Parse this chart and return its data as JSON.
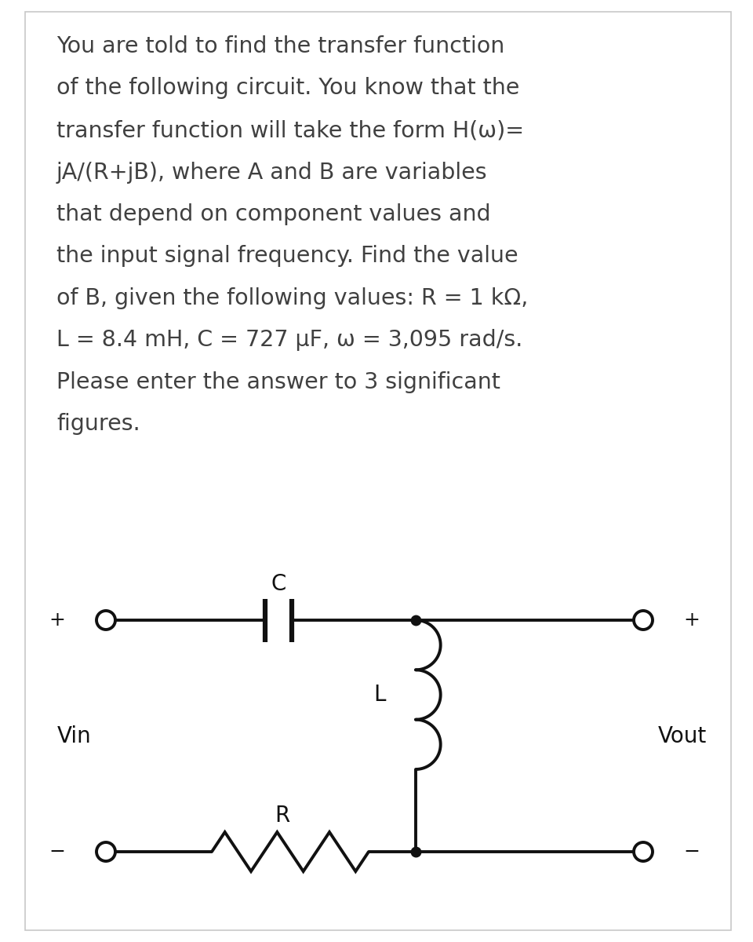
{
  "background_color": "#ffffff",
  "border_color": "#c8c8c8",
  "text_color": "#404040",
  "text_lines": [
    "You are told to find the transfer function",
    "of the following circuit. You know that the",
    "transfer function will take the form H(ω)=",
    "jA/(R+jB), where A and B are variables",
    "that depend on component values and",
    "the input signal frequency. Find the value",
    "of B, given the following values: R = 1 kΩ,",
    "L = 8.4 mH, C = 727 μF, ω = 3,095 rad/s.",
    "Please enter the answer to 3 significant",
    "figures."
  ],
  "text_fontsize": 20.5,
  "circuit_label_fontsize": 20,
  "sign_fontsize": 18,
  "lw": 2.8,
  "black": "#111111"
}
